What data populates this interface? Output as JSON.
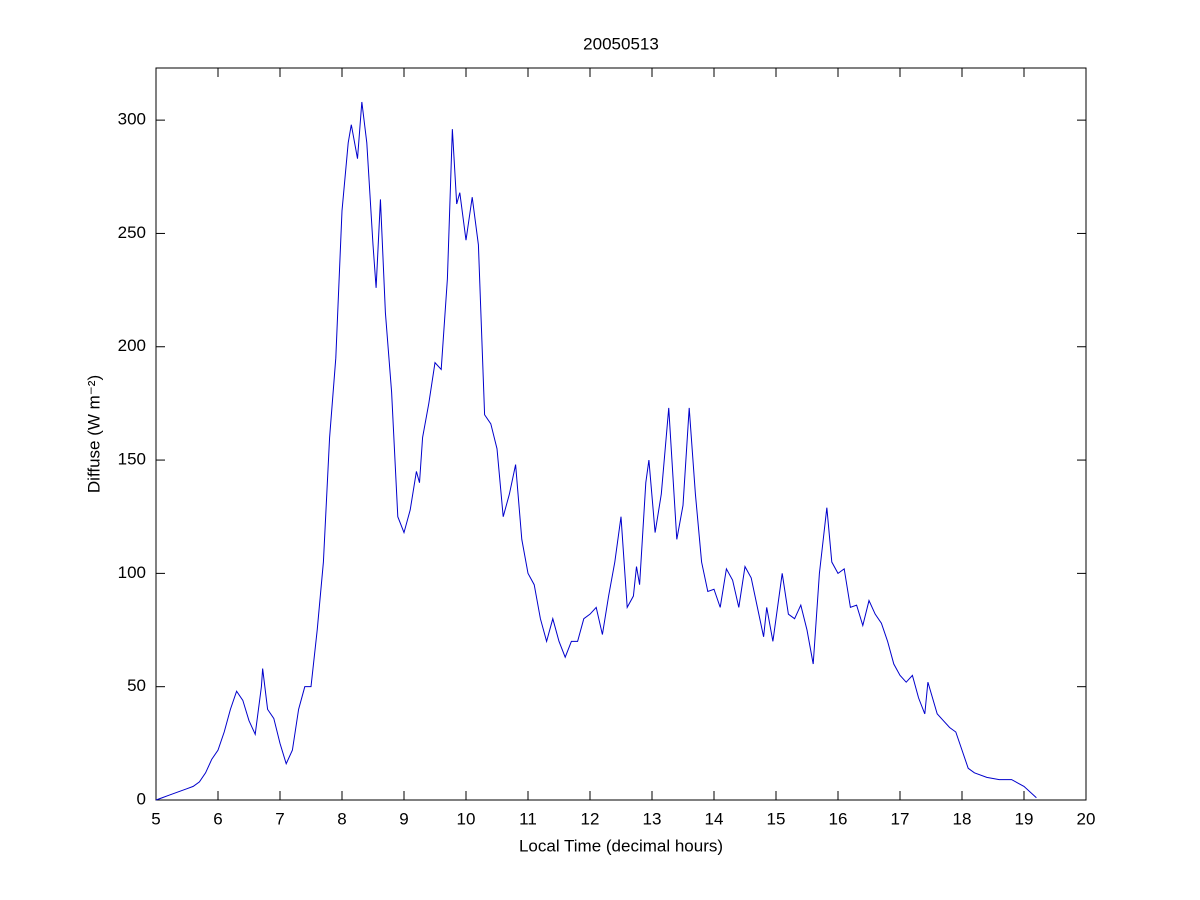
{
  "chart_data": {
    "type": "line",
    "title": "20050513",
    "x_label": "Local Time (decimal hours)",
    "y_label": "Diffuse (W m⁻²)",
    "xlim": [
      5,
      20
    ],
    "xticks": [
      5,
      6,
      7,
      8,
      9,
      10,
      11,
      12,
      13,
      14,
      15,
      16,
      17,
      18,
      19,
      20
    ],
    "ylim": [
      0,
      323
    ],
    "yticks": [
      0,
      50,
      100,
      150,
      200,
      250,
      300
    ],
    "x": [
      5.0,
      5.1,
      5.2,
      5.3,
      5.4,
      5.5,
      5.6,
      5.7,
      5.8,
      5.9,
      6.0,
      6.1,
      6.2,
      6.3,
      6.4,
      6.5,
      6.6,
      6.7,
      6.72,
      6.8,
      6.9,
      7.0,
      7.1,
      7.2,
      7.3,
      7.4,
      7.5,
      7.6,
      7.7,
      7.8,
      7.9,
      8.0,
      8.1,
      8.15,
      8.25,
      8.32,
      8.4,
      8.5,
      8.55,
      8.62,
      8.7,
      8.8,
      8.9,
      9.0,
      9.1,
      9.2,
      9.25,
      9.3,
      9.4,
      9.5,
      9.6,
      9.7,
      9.78,
      9.85,
      9.9,
      10.0,
      10.1,
      10.2,
      10.3,
      10.4,
      10.5,
      10.6,
      10.7,
      10.8,
      10.9,
      11.0,
      11.1,
      11.2,
      11.3,
      11.4,
      11.5,
      11.6,
      11.7,
      11.8,
      11.9,
      12.0,
      12.1,
      12.2,
      12.3,
      12.4,
      12.5,
      12.6,
      12.7,
      12.75,
      12.8,
      12.9,
      12.95,
      13.05,
      13.15,
      13.27,
      13.4,
      13.5,
      13.6,
      13.7,
      13.8,
      13.9,
      14.0,
      14.1,
      14.2,
      14.3,
      14.4,
      14.5,
      14.6,
      14.7,
      14.8,
      14.85,
      14.95,
      15.1,
      15.2,
      15.3,
      15.4,
      15.5,
      15.6,
      15.7,
      15.82,
      15.9,
      16.0,
      16.1,
      16.2,
      16.3,
      16.4,
      16.5,
      16.6,
      16.7,
      16.8,
      16.9,
      17.0,
      17.1,
      17.2,
      17.3,
      17.4,
      17.45,
      17.6,
      17.7,
      17.8,
      17.9,
      18.0,
      18.1,
      18.2,
      18.4,
      18.6,
      18.8,
      19.0,
      19.2
    ],
    "series": [
      {
        "name": "Diffuse",
        "color": "#0000cc",
        "values": [
          0,
          1,
          2,
          3,
          4,
          5,
          6,
          8,
          12,
          18,
          22,
          30,
          40,
          48,
          44,
          35,
          29,
          50,
          58,
          40,
          36,
          25,
          16,
          22,
          40,
          50,
          50,
          75,
          105,
          160,
          195,
          260,
          290,
          298,
          283,
          308,
          290,
          245,
          226,
          265,
          215,
          180,
          125,
          118,
          128,
          145,
          140,
          160,
          175,
          193,
          190,
          230,
          296,
          263,
          268,
          247,
          266,
          245,
          170,
          166,
          155,
          125,
          135,
          148,
          115,
          100,
          95,
          80,
          70,
          80,
          70,
          63,
          70,
          70,
          80,
          82,
          85,
          73,
          90,
          105,
          125,
          85,
          90,
          103,
          95,
          140,
          150,
          118,
          135,
          173,
          115,
          130,
          173,
          135,
          105,
          92,
          93,
          85,
          102,
          97,
          85,
          103,
          98,
          85,
          72,
          85,
          70,
          100,
          82,
          80,
          86,
          75,
          60,
          100,
          129,
          105,
          100,
          102,
          85,
          86,
          77,
          88,
          82,
          78,
          70,
          60,
          55,
          52,
          55,
          45,
          38,
          52,
          38,
          35,
          32,
          30,
          22,
          14,
          12,
          10,
          9,
          9,
          6,
          1
        ]
      }
    ]
  }
}
